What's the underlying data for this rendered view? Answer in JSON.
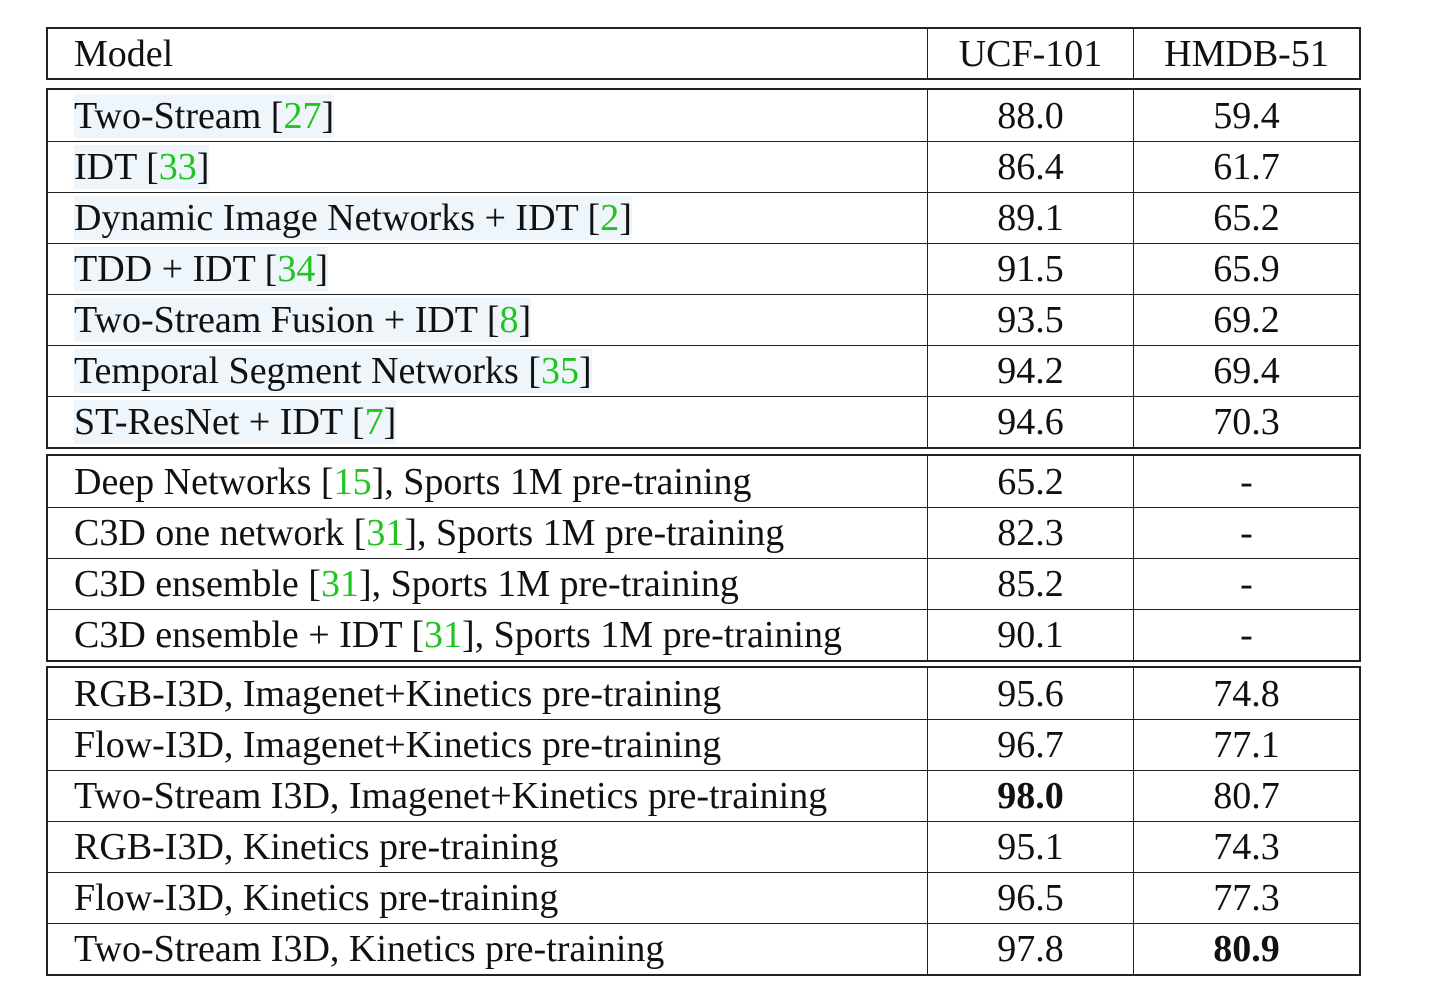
{
  "header": {
    "model": "Model",
    "ucf": "UCF-101",
    "hmdb": "HMDB-51"
  },
  "groups": [
    {
      "rows": [
        {
          "pre": "Two-Stream [",
          "ref": "27",
          "post": "]",
          "ucf": "88.0",
          "hmdb": "59.4"
        },
        {
          "pre": "IDT [",
          "ref": "33",
          "post": "]",
          "ucf": "86.4",
          "hmdb": "61.7"
        },
        {
          "pre": "Dynamic Image Networks + IDT [",
          "ref": "2",
          "post": "]",
          "ucf": "89.1",
          "hmdb": "65.2"
        },
        {
          "pre": "TDD + IDT [",
          "ref": "34",
          "post": "]",
          "ucf": "91.5",
          "hmdb": "65.9"
        },
        {
          "pre": "Two-Stream Fusion + IDT [",
          "ref": "8",
          "post": "]",
          "ucf": "93.5",
          "hmdb": "69.2"
        },
        {
          "pre": "Temporal Segment Networks [",
          "ref": "35",
          "post": "]",
          "ucf": "94.2",
          "hmdb": "69.4"
        },
        {
          "pre": "ST-ResNet + IDT [",
          "ref": "7",
          "post": "]",
          "ucf": "94.6",
          "hmdb": "70.3"
        }
      ]
    },
    {
      "rows": [
        {
          "pre": "Deep Networks [",
          "ref": "15",
          "post": "], Sports 1M pre-training",
          "ucf": "65.2",
          "hmdb": "-"
        },
        {
          "pre": "C3D one network [",
          "ref": "31",
          "post": "], Sports 1M pre-training",
          "ucf": "82.3",
          "hmdb": "-"
        },
        {
          "pre": "C3D ensemble [",
          "ref": "31",
          "post": "], Sports 1M pre-training",
          "ucf": "85.2",
          "hmdb": "-"
        },
        {
          "pre": "C3D ensemble + IDT [",
          "ref": "31",
          "post": "], Sports 1M pre-training",
          "ucf": "90.1",
          "hmdb": "-"
        }
      ]
    },
    {
      "rows": [
        {
          "pre": "RGB-I3D, Imagenet+Kinetics pre-training",
          "ref": "",
          "post": "",
          "ucf": "95.6",
          "hmdb": "74.8"
        },
        {
          "pre": "Flow-I3D, Imagenet+Kinetics pre-training",
          "ref": "",
          "post": "",
          "ucf": "96.7",
          "hmdb": "77.1"
        },
        {
          "pre": "Two-Stream I3D, Imagenet+Kinetics pre-training",
          "ref": "",
          "post": "",
          "ucf": "98.0",
          "hmdb": "80.7",
          "bold_ucf": true
        },
        {
          "pre": "RGB-I3D, Kinetics pre-training",
          "ref": "",
          "post": "",
          "ucf": "95.1",
          "hmdb": "74.3"
        },
        {
          "pre": "Flow-I3D, Kinetics pre-training",
          "ref": "",
          "post": "",
          "ucf": "96.5",
          "hmdb": "77.3"
        },
        {
          "pre": "Two-Stream I3D, Kinetics pre-training",
          "ref": "",
          "post": "",
          "ucf": "97.8",
          "hmdb": "80.9",
          "bold_hmdb": true
        }
      ]
    }
  ],
  "colors": {
    "reference": "#22c422",
    "highlight": "#eef5fb"
  }
}
